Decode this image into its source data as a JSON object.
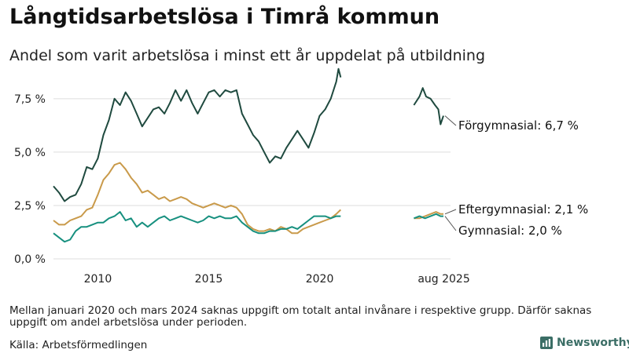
{
  "title": "Långtidsarbetslösa i Timrå kommun",
  "subtitle": "Andel som varit arbetslösa i minst ett år uppdelat på utbildning",
  "note": "Mellan januari 2020 och mars 2024 saknas uppgift om totalt antal invånare i respektive grupp. Därför saknas uppgift om andel arbetslösa under perioden.",
  "source": "Källa: Arbetsförmedlingen",
  "brand": {
    "name": "Newsworthy",
    "icon": "newsworthy-bar-chart-icon"
  },
  "colors": {
    "forgymnasial": "#1f4a3f",
    "eftergymnasial": "#c99a4a",
    "gymnasial": "#17907f",
    "grid": "#dddddd"
  },
  "chart_data": {
    "type": "line",
    "x_unit": "year",
    "xlim": [
      2008.0,
      2025.9
    ],
    "ylim": [
      0,
      9
    ],
    "y_ticks": [
      0,
      2.5,
      5.0,
      7.5
    ],
    "y_tick_labels": [
      "0,0 %",
      "2,5 %",
      "5,0 %",
      "7,5 %"
    ],
    "x_ticks": [
      2010,
      2015,
      2020,
      2025.6
    ],
    "x_tick_labels": [
      "2010",
      "2015",
      "2020",
      "aug 2025"
    ],
    "grid": "horizontal",
    "series": [
      {
        "key": "forgymnasial",
        "end_label": "Förgymnasial: 6,7 %",
        "segments": [
          [
            [
              2008.0,
              3.4
            ],
            [
              2008.25,
              3.1
            ],
            [
              2008.5,
              2.7
            ],
            [
              2008.75,
              2.9
            ],
            [
              2009.0,
              3.0
            ],
            [
              2009.25,
              3.5
            ],
            [
              2009.5,
              4.3
            ],
            [
              2009.75,
              4.2
            ],
            [
              2010.0,
              4.7
            ],
            [
              2010.25,
              5.8
            ],
            [
              2010.5,
              6.5
            ],
            [
              2010.75,
              7.5
            ],
            [
              2011.0,
              7.2
            ],
            [
              2011.25,
              7.8
            ],
            [
              2011.5,
              7.4
            ],
            [
              2011.75,
              6.8
            ],
            [
              2012.0,
              6.2
            ],
            [
              2012.25,
              6.6
            ],
            [
              2012.5,
              7.0
            ],
            [
              2012.75,
              7.1
            ],
            [
              2013.0,
              6.8
            ],
            [
              2013.25,
              7.3
            ],
            [
              2013.5,
              7.9
            ],
            [
              2013.75,
              7.4
            ],
            [
              2014.0,
              7.9
            ],
            [
              2014.25,
              7.3
            ],
            [
              2014.5,
              6.8
            ],
            [
              2014.75,
              7.3
            ],
            [
              2015.0,
              7.8
            ],
            [
              2015.25,
              7.9
            ],
            [
              2015.5,
              7.6
            ],
            [
              2015.75,
              7.9
            ],
            [
              2016.0,
              7.8
            ],
            [
              2016.25,
              7.9
            ],
            [
              2016.5,
              6.8
            ],
            [
              2016.75,
              6.3
            ],
            [
              2017.0,
              5.8
            ],
            [
              2017.25,
              5.5
            ],
            [
              2017.5,
              5.0
            ],
            [
              2017.75,
              4.5
            ],
            [
              2018.0,
              4.8
            ],
            [
              2018.25,
              4.7
            ],
            [
              2018.5,
              5.2
            ],
            [
              2018.75,
              5.6
            ],
            [
              2019.0,
              6.0
            ],
            [
              2019.25,
              5.6
            ],
            [
              2019.5,
              5.2
            ],
            [
              2019.75,
              5.9
            ],
            [
              2020.0,
              6.7
            ],
            [
              2020.25,
              7.0
            ],
            [
              2020.5,
              7.5
            ],
            [
              2020.75,
              8.3
            ],
            [
              2020.85,
              8.9
            ],
            [
              2020.95,
              8.5
            ]
          ],
          [
            [
              2024.25,
              7.2
            ],
            [
              2024.5,
              7.6
            ],
            [
              2024.65,
              8.0
            ],
            [
              2024.8,
              7.6
            ],
            [
              2025.0,
              7.5
            ],
            [
              2025.2,
              7.2
            ],
            [
              2025.35,
              7.0
            ],
            [
              2025.45,
              6.3
            ],
            [
              2025.58,
              6.7
            ]
          ]
        ]
      },
      {
        "key": "eftergymnasial",
        "end_label": "Eftergymnasial: 2,1 %",
        "segments": [
          [
            [
              2008.0,
              1.8
            ],
            [
              2008.25,
              1.6
            ],
            [
              2008.5,
              1.6
            ],
            [
              2008.75,
              1.8
            ],
            [
              2009.0,
              1.9
            ],
            [
              2009.25,
              2.0
            ],
            [
              2009.5,
              2.3
            ],
            [
              2009.75,
              2.4
            ],
            [
              2010.0,
              3.0
            ],
            [
              2010.25,
              3.7
            ],
            [
              2010.5,
              4.0
            ],
            [
              2010.75,
              4.4
            ],
            [
              2011.0,
              4.5
            ],
            [
              2011.25,
              4.2
            ],
            [
              2011.5,
              3.8
            ],
            [
              2011.75,
              3.5
            ],
            [
              2012.0,
              3.1
            ],
            [
              2012.25,
              3.2
            ],
            [
              2012.5,
              3.0
            ],
            [
              2012.75,
              2.8
            ],
            [
              2013.0,
              2.9
            ],
            [
              2013.25,
              2.7
            ],
            [
              2013.5,
              2.8
            ],
            [
              2013.75,
              2.9
            ],
            [
              2014.0,
              2.8
            ],
            [
              2014.25,
              2.6
            ],
            [
              2014.5,
              2.5
            ],
            [
              2014.75,
              2.4
            ],
            [
              2015.0,
              2.5
            ],
            [
              2015.25,
              2.6
            ],
            [
              2015.5,
              2.5
            ],
            [
              2015.75,
              2.4
            ],
            [
              2016.0,
              2.5
            ],
            [
              2016.25,
              2.4
            ],
            [
              2016.5,
              2.1
            ],
            [
              2016.75,
              1.6
            ],
            [
              2017.0,
              1.4
            ],
            [
              2017.25,
              1.3
            ],
            [
              2017.5,
              1.3
            ],
            [
              2017.75,
              1.4
            ],
            [
              2018.0,
              1.3
            ],
            [
              2018.25,
              1.5
            ],
            [
              2018.5,
              1.4
            ],
            [
              2018.75,
              1.2
            ],
            [
              2019.0,
              1.2
            ],
            [
              2019.25,
              1.4
            ],
            [
              2019.5,
              1.5
            ],
            [
              2019.75,
              1.6
            ],
            [
              2020.0,
              1.7
            ],
            [
              2020.25,
              1.8
            ],
            [
              2020.5,
              1.9
            ],
            [
              2020.75,
              2.1
            ],
            [
              2020.95,
              2.3
            ]
          ],
          [
            [
              2024.25,
              1.9
            ],
            [
              2024.5,
              1.9
            ],
            [
              2024.75,
              2.0
            ],
            [
              2025.0,
              2.1
            ],
            [
              2025.25,
              2.2
            ],
            [
              2025.45,
              2.1
            ],
            [
              2025.58,
              2.1
            ]
          ]
        ]
      },
      {
        "key": "gymnasial",
        "end_label": "Gymnasial: 2,0 %",
        "segments": [
          [
            [
              2008.0,
              1.2
            ],
            [
              2008.25,
              1.0
            ],
            [
              2008.5,
              0.8
            ],
            [
              2008.75,
              0.9
            ],
            [
              2009.0,
              1.3
            ],
            [
              2009.25,
              1.5
            ],
            [
              2009.5,
              1.5
            ],
            [
              2009.75,
              1.6
            ],
            [
              2010.0,
              1.7
            ],
            [
              2010.25,
              1.7
            ],
            [
              2010.5,
              1.9
            ],
            [
              2010.75,
              2.0
            ],
            [
              2011.0,
              2.2
            ],
            [
              2011.25,
              1.8
            ],
            [
              2011.5,
              1.9
            ],
            [
              2011.75,
              1.5
            ],
            [
              2012.0,
              1.7
            ],
            [
              2012.25,
              1.5
            ],
            [
              2012.5,
              1.7
            ],
            [
              2012.75,
              1.9
            ],
            [
              2013.0,
              2.0
            ],
            [
              2013.25,
              1.8
            ],
            [
              2013.5,
              1.9
            ],
            [
              2013.75,
              2.0
            ],
            [
              2014.0,
              1.9
            ],
            [
              2014.25,
              1.8
            ],
            [
              2014.5,
              1.7
            ],
            [
              2014.75,
              1.8
            ],
            [
              2015.0,
              2.0
            ],
            [
              2015.25,
              1.9
            ],
            [
              2015.5,
              2.0
            ],
            [
              2015.75,
              1.9
            ],
            [
              2016.0,
              1.9
            ],
            [
              2016.25,
              2.0
            ],
            [
              2016.5,
              1.7
            ],
            [
              2016.75,
              1.5
            ],
            [
              2017.0,
              1.3
            ],
            [
              2017.25,
              1.2
            ],
            [
              2017.5,
              1.2
            ],
            [
              2017.75,
              1.3
            ],
            [
              2018.0,
              1.3
            ],
            [
              2018.25,
              1.4
            ],
            [
              2018.5,
              1.4
            ],
            [
              2018.75,
              1.5
            ],
            [
              2019.0,
              1.4
            ],
            [
              2019.25,
              1.6
            ],
            [
              2019.5,
              1.8
            ],
            [
              2019.75,
              2.0
            ],
            [
              2020.0,
              2.0
            ],
            [
              2020.25,
              2.0
            ],
            [
              2020.5,
              1.9
            ],
            [
              2020.75,
              2.0
            ],
            [
              2020.95,
              2.0
            ]
          ],
          [
            [
              2024.25,
              1.9
            ],
            [
              2024.5,
              2.0
            ],
            [
              2024.75,
              1.9
            ],
            [
              2025.0,
              2.0
            ],
            [
              2025.25,
              2.1
            ],
            [
              2025.45,
              2.0
            ],
            [
              2025.58,
              2.0
            ]
          ]
        ]
      }
    ]
  }
}
